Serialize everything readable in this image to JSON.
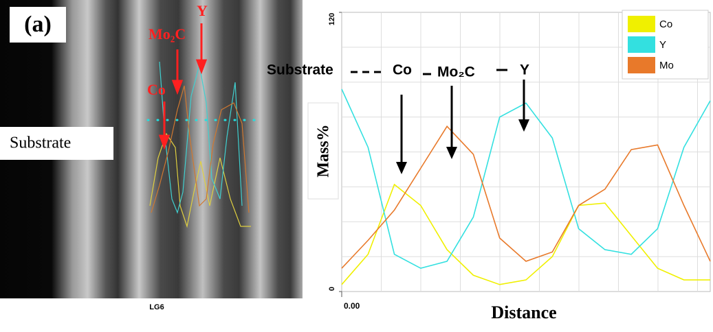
{
  "panel_label": "(a)",
  "image_annotations": {
    "substrate": "Substrate",
    "mo2c": "Mo₂C",
    "y": "Y",
    "co": "Co",
    "caption": "LG6"
  },
  "chart_data": {
    "type": "line",
    "y_label": "Mass%",
    "x_label": "Distance",
    "annotations": {
      "substrate": "Substrate",
      "co": "Co",
      "mo2c": "Mo₂C",
      "y": "Y"
    },
    "x": [
      0,
      1,
      2,
      3,
      4,
      5,
      6,
      7,
      8,
      9,
      10,
      11,
      12,
      13,
      14
    ],
    "xlim": [
      0,
      14
    ],
    "xticks": [
      {
        "value": 0,
        "label": "0.00"
      }
    ],
    "ylim": [
      0,
      120
    ],
    "yticks": [
      0,
      120
    ],
    "grid": true,
    "legend": "upper right",
    "series": [
      {
        "name": "Co",
        "color": "#f0f000",
        "values": [
          3,
          16,
          46,
          37,
          18,
          7,
          3,
          5,
          15,
          37,
          38,
          24,
          10,
          5,
          5
        ]
      },
      {
        "name": "Y",
        "color": "#33e0e0",
        "values": [
          87,
          62,
          16,
          10,
          13,
          32,
          75,
          81,
          66,
          27,
          18,
          16,
          27,
          62,
          82
        ]
      },
      {
        "name": "Mo",
        "color": "#e8792a",
        "values": [
          10,
          22,
          35,
          53,
          71,
          59,
          23,
          13,
          17,
          37,
          44,
          61,
          63,
          37,
          13
        ]
      }
    ]
  }
}
